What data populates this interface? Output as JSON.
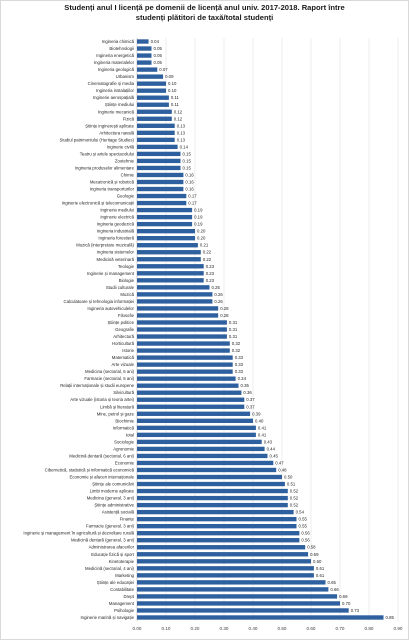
{
  "chart_data": {
    "type": "bar",
    "orientation": "horizontal",
    "title": "Studenți anul I licență pe domenii de licență anul univ. 2017-2018. Raport între studenți plătitori de taxă/total studenți",
    "title_lines": [
      "Studenți anul I licență pe domenii de licență anul univ. 2017-2018. Raport între",
      "studenți plătitori de taxă/total studenți"
    ],
    "xlabel": "",
    "ylabel": "",
    "xlim": [
      0,
      0.9
    ],
    "ticks": [
      "0.00",
      "0.10",
      "0.20",
      "0.30",
      "0.40",
      "0.50",
      "0.60",
      "0.70",
      "0.80",
      "0.90"
    ],
    "gridlines": true,
    "legend": "none",
    "bar_color": "#2e5f9e",
    "categories": [
      "Ingineria chimică",
      "Biotehnologii",
      "Ingineria energetică",
      "Ingineria materialelor",
      "Ingineria geologică",
      "Urbanism",
      "Cinematografie și media",
      "Ingineria instalațiilor",
      "Inginerie aerospațială",
      "Științe mediului",
      "Inginerie mecanică",
      "Fizică",
      "Științe inginerești aplicate",
      "Arhitectura navală",
      "Studiul patrimoniului (Heritage Studies)",
      "Inginerie civilă",
      "Teatru și artele spectacolului",
      "Zootehnie",
      "Ingineria produselor alimentare",
      "Chimie",
      "Mecatronică și robotică",
      "Ingineria transporturilor",
      "Geologie",
      "Inginerie electronică și telecomunicații",
      "Ingineria mediului",
      "Inginerie electrică",
      "Ingineria geodezică",
      "Ingineria industrială",
      "Ingineria forestieră",
      "Muzică (interpretare muzicală)",
      "Ingineria sistemelor",
      "Medicină veterinară",
      "Teologie",
      "Inginerie și management",
      "Biologie",
      "Studii culturale",
      "Muzică",
      "Calculatoare și tehnologia informației",
      "Ingineria autovehiculelor",
      "Filosofie",
      "Științe politice",
      "Geografie",
      "Arhitectură",
      "Horticultură",
      "Istorie",
      "Matematică",
      "Arte vizuale",
      "Medicina (sectorial, 6 ani)",
      "Farmacie (sectorial, 5 ani)",
      "Relații internaționale și studii europene",
      "Silvicultură",
      "Arte vizuale (istoria și teoria artei)",
      "Limbă și literatură",
      "Mine, petrol și gaze",
      "Biochimie",
      "Informatică",
      "total",
      "Sociologie",
      "Agronomie",
      "Medicină dentară (sectorial, 6 ani)",
      "Economie",
      "Cibernetică, statistică și informatică economică",
      "Economie și afaceri internaționale",
      "Științe ale comunicării",
      "Limbi moderne aplicate",
      "Medicina (general, 3 ani)",
      "Științe administrative",
      "Asistență socială",
      "Finanțe",
      "Farmacie (general, 3 ani)",
      "Inginerie și management în agricultură și dezvoltare rurală",
      "Medicină dentară (general, 3 ani)",
      "Administrarea afacerilor",
      "Educație fizică și sport",
      "Kinetoterapie",
      "Medicină (sectorial, 4 ani)",
      "Marketing",
      "Științe ale educației",
      "Contabilitate",
      "Drept",
      "Management",
      "Psihologie",
      "Inginerie marină și navigație"
    ],
    "values": [
      0.04,
      0.05,
      0.05,
      0.05,
      0.07,
      0.09,
      0.1,
      0.1,
      0.11,
      0.11,
      0.12,
      0.12,
      0.13,
      0.13,
      0.13,
      0.14,
      0.15,
      0.15,
      0.15,
      0.16,
      0.16,
      0.16,
      0.17,
      0.17,
      0.19,
      0.19,
      0.19,
      0.2,
      0.2,
      0.21,
      0.22,
      0.22,
      0.23,
      0.23,
      0.23,
      0.25,
      0.26,
      0.26,
      0.28,
      0.28,
      0.31,
      0.31,
      0.31,
      0.32,
      0.32,
      0.33,
      0.33,
      0.33,
      0.34,
      0.35,
      0.36,
      0.37,
      0.37,
      0.39,
      0.4,
      0.41,
      0.41,
      0.43,
      0.44,
      0.45,
      0.47,
      0.48,
      0.5,
      0.51,
      0.52,
      0.52,
      0.52,
      0.54,
      0.55,
      0.55,
      0.56,
      0.56,
      0.58,
      0.59,
      0.6,
      0.61,
      0.61,
      0.65,
      0.66,
      0.69,
      0.7,
      0.73,
      0.85
    ],
    "value_labels": [
      "0.04",
      "0.05",
      "0.05",
      "0.05",
      "0.07",
      "0.09",
      "0.10",
      "0.10",
      "0.11",
      "0.11",
      "0.12",
      "0.12",
      "0.13",
      "0.13",
      "0.13",
      "0.14",
      "0.15",
      "0.15",
      "0.15",
      "0.16",
      "0.16",
      "0.16",
      "0.17",
      "0.17",
      "0.19",
      "0.19",
      "0.19",
      "0.20",
      "0.20",
      "0.21",
      "0.22",
      "0.22",
      "0.23",
      "0.23",
      "0.23",
      "0.25",
      "0.26",
      "0.26",
      "0.28",
      "0.28",
      "0.31",
      "0.31",
      "0.31",
      "0.32",
      "0.32",
      "0.33",
      "0.33",
      "0.33",
      "0.34",
      "0.35",
      "0.36",
      "0.37",
      "0.37",
      "0.39",
      "0.40",
      "0.41",
      "0.41",
      "0.43",
      "0.44",
      "0.45",
      "0.47",
      "0.48",
      "0.50",
      "0.51",
      "0.52",
      "0.52",
      "0.52",
      "0.54",
      "0.55",
      "0.55",
      "0.56",
      "0.56",
      "0.58",
      "0.59",
      "0.60",
      "0.61",
      "0.61",
      "0.65",
      "0.66",
      "0.69",
      "0.70",
      "0.73",
      "0.85"
    ]
  }
}
